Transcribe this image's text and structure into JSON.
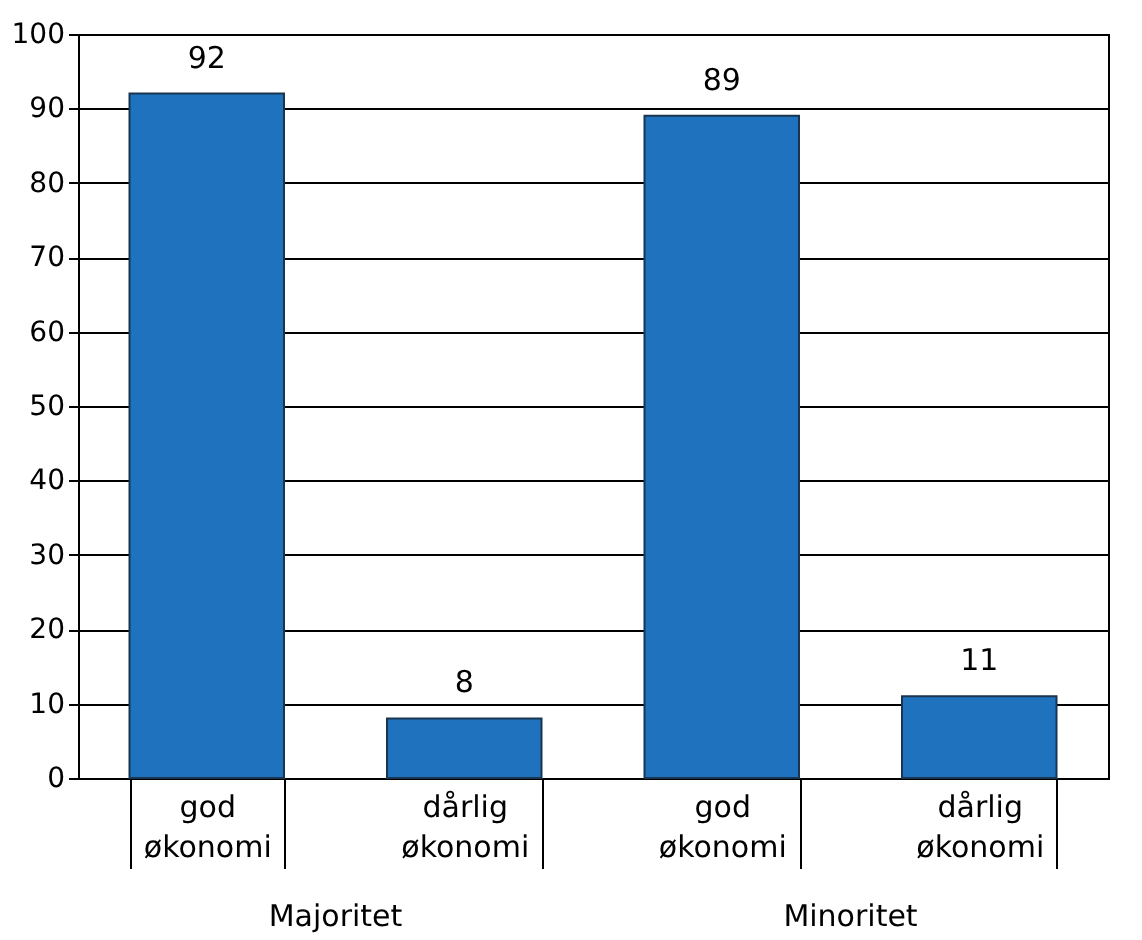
{
  "chart_data": {
    "type": "bar",
    "categories": [
      "god økonomi",
      "dårlig økonomi",
      "god økonomi",
      "dårlig økonomi"
    ],
    "values": [
      92,
      8,
      89,
      11
    ],
    "color": "#1f73be",
    "data_labels": true,
    "ylim": [
      0,
      100
    ],
    "yticks": [
      0,
      10,
      20,
      30,
      40,
      50,
      60,
      70,
      80,
      90,
      100
    ],
    "grid": "y",
    "annotations": [
      "Majoritet",
      "Minoritet"
    ]
  }
}
